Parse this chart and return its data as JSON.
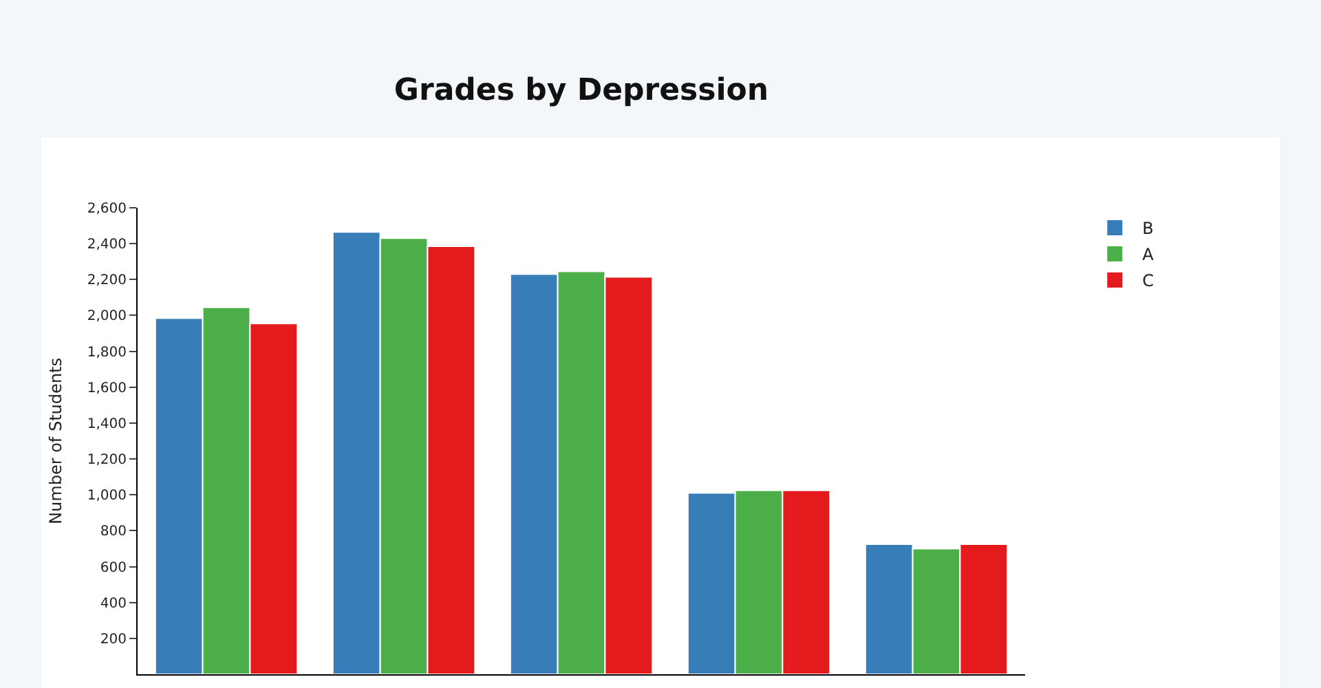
{
  "chart_data": {
    "type": "bar",
    "title": "Grades by Depression",
    "ylabel": "Number of Students",
    "categories": [
      null,
      null,
      null,
      null,
      null
    ],
    "series": [
      {
        "name": "B",
        "color": "#377eb8",
        "values": [
          1985,
          2465,
          2230,
          1010,
          725
        ]
      },
      {
        "name": "A",
        "color": "#4daf4a",
        "values": [
          2045,
          2430,
          2245,
          1025,
          700
        ]
      },
      {
        "name": "C",
        "color": "#e41a1c",
        "values": [
          1955,
          2385,
          2215,
          1025,
          725
        ]
      }
    ],
    "ylim": [
      0,
      2600
    ],
    "yticks": [
      {
        "value": 200,
        "label": "200"
      },
      {
        "value": 400,
        "label": "400"
      },
      {
        "value": 600,
        "label": "600"
      },
      {
        "value": 800,
        "label": "800"
      },
      {
        "value": 1000,
        "label": "1,000"
      },
      {
        "value": 1200,
        "label": "1,200"
      },
      {
        "value": 1400,
        "label": "1,400"
      },
      {
        "value": 1600,
        "label": "1,600"
      },
      {
        "value": 1800,
        "label": "1,800"
      },
      {
        "value": 2000,
        "label": "2,000"
      },
      {
        "value": 2200,
        "label": "2,200"
      },
      {
        "value": 2400,
        "label": "2,400"
      },
      {
        "value": 2600,
        "label": "2,600"
      }
    ],
    "legend": "top right"
  }
}
